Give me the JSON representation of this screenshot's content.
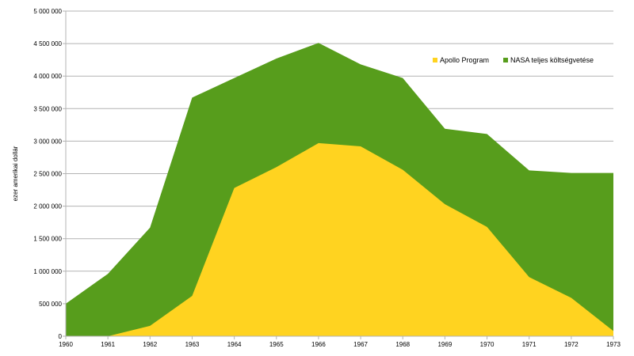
{
  "chart_data": {
    "type": "area",
    "ylabel": "ezer amerikai dollár",
    "xlabel": "",
    "x": [
      "1960",
      "1961",
      "1962",
      "1963",
      "1964",
      "1965",
      "1966",
      "1967",
      "1968",
      "1969",
      "1970",
      "1971",
      "1972",
      "1973"
    ],
    "ylim": [
      0,
      5000000
    ],
    "yticks": [
      0,
      500000,
      1000000,
      1500000,
      2000000,
      2500000,
      3000000,
      3500000,
      4000000,
      4500000,
      5000000
    ],
    "ytick_labels": [
      "0",
      "500 000",
      "1 000 000",
      "1 500 000",
      "2 000 000",
      "2 500 000",
      "3 000 000",
      "3 500 000",
      "4 000 000",
      "4 500 000",
      "5 000 000"
    ],
    "grid": true,
    "legend_position": "top-right",
    "series": [
      {
        "name": "NASA teljes költségvetése",
        "color": "#579d1c",
        "values": [
          500000,
          960000,
          1670000,
          3670000,
          3970000,
          4270000,
          4510000,
          4180000,
          3970000,
          3190000,
          3110000,
          2550000,
          2510000,
          2510000
        ]
      },
      {
        "name": "Apollo Program",
        "color": "#ffd320",
        "values": [
          0,
          0,
          160000,
          620000,
          2280000,
          2600000,
          2970000,
          2920000,
          2560000,
          2030000,
          1680000,
          910000,
          590000,
          80000
        ]
      }
    ],
    "legend": [
      {
        "name": "Apollo Program",
        "color": "#ffd320"
      },
      {
        "name": "NASA teljes költségvetése",
        "color": "#579d1c"
      }
    ]
  }
}
